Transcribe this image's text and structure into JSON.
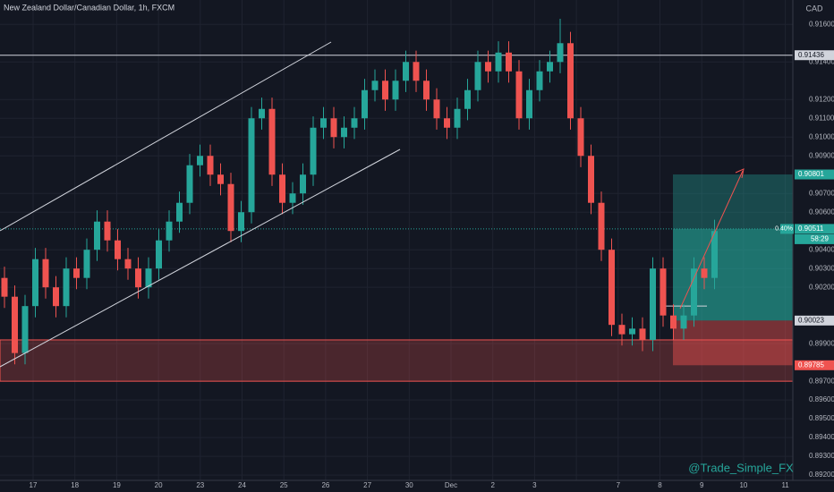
{
  "chart_data": {
    "type": "candlestick",
    "title": "New Zealand Dollar/Canadian Dollar, 1h, FXCM",
    "currency": "CAD",
    "watermark": "@Trade_Simple_FX",
    "up_color": "#26a69a",
    "down_color": "#ef5350",
    "x_labels": [
      "17",
      "18",
      "19",
      "20",
      "23",
      "24",
      "25",
      "26",
      "27",
      "30",
      "Dec",
      "2",
      "3",
      null,
      "7",
      "8",
      "9",
      "10",
      "11"
    ],
    "open": [
      0.9025,
      0.9015,
      0.8985,
      0.901,
      0.9035,
      0.902,
      0.901,
      0.903,
      0.9025,
      0.904,
      0.9055,
      0.9045,
      0.9035,
      0.903,
      0.902,
      0.903,
      0.9045,
      0.9055,
      0.9065,
      0.9085,
      0.909,
      0.908,
      0.9075,
      0.905,
      0.906,
      0.911,
      0.9115,
      0.908,
      0.9065,
      0.907,
      0.908,
      0.9105,
      0.911,
      0.91,
      0.9105,
      0.911,
      0.9125,
      0.913,
      0.912,
      0.913,
      0.914,
      0.913,
      0.912,
      0.911,
      0.9105,
      0.9115,
      0.9125,
      0.914,
      0.9135,
      0.9145,
      0.9135,
      0.911,
      0.9125,
      0.9135,
      0.914,
      0.915,
      0.911,
      0.909,
      0.9065,
      0.904,
      0.9,
      0.8995,
      0.8998,
      0.8992,
      0.903,
      0.9005,
      0.8998,
      0.9005,
      0.903,
      0.9025
    ],
    "close": [
      0.9015,
      0.8985,
      0.901,
      0.9035,
      0.902,
      0.901,
      0.903,
      0.9025,
      0.904,
      0.9055,
      0.9045,
      0.9035,
      0.903,
      0.902,
      0.903,
      0.9045,
      0.9055,
      0.9065,
      0.9085,
      0.909,
      0.908,
      0.9075,
      0.905,
      0.906,
      0.911,
      0.9115,
      0.908,
      0.9065,
      0.907,
      0.908,
      0.9105,
      0.911,
      0.91,
      0.9105,
      0.911,
      0.9125,
      0.913,
      0.912,
      0.913,
      0.914,
      0.913,
      0.912,
      0.911,
      0.9105,
      0.9115,
      0.9125,
      0.914,
      0.9135,
      0.9145,
      0.9135,
      0.911,
      0.9125,
      0.9135,
      0.914,
      0.915,
      0.911,
      0.909,
      0.9065,
      0.904,
      0.9,
      0.8995,
      0.8998,
      0.8992,
      0.903,
      0.9005,
      0.8998,
      0.9005,
      0.903,
      0.9025,
      0.905
    ],
    "high": [
      0.9031,
      0.9021,
      0.9016,
      0.9041,
      0.9041,
      0.9026,
      0.9036,
      0.9036,
      0.9046,
      0.9061,
      0.9061,
      0.9051,
      0.9041,
      0.9036,
      0.9036,
      0.9051,
      0.9061,
      0.9071,
      0.9091,
      0.9096,
      0.9096,
      0.9086,
      0.9081,
      0.9066,
      0.9116,
      0.9121,
      0.9121,
      0.9086,
      0.9076,
      0.9086,
      0.9111,
      0.9116,
      0.9116,
      0.9111,
      0.9116,
      0.9131,
      0.9136,
      0.9136,
      0.9136,
      0.9146,
      0.9146,
      0.9136,
      0.9126,
      0.9116,
      0.9121,
      0.9131,
      0.9146,
      0.9146,
      0.9151,
      0.9151,
      0.9141,
      0.9131,
      0.9141,
      0.9146,
      0.9163,
      0.9156,
      0.9116,
      0.9096,
      0.9071,
      0.9046,
      0.9006,
      0.9004,
      0.9004,
      0.9036,
      0.9036,
      0.9011,
      0.9011,
      0.9036,
      0.9036,
      0.9056
    ],
    "low": [
      0.9009,
      0.8979,
      0.8979,
      0.9004,
      0.9014,
      0.9004,
      0.9004,
      0.9019,
      0.9019,
      0.9034,
      0.9039,
      0.9029,
      0.9024,
      0.9014,
      0.9014,
      0.9024,
      0.9039,
      0.9049,
      0.9059,
      0.9079,
      0.9074,
      0.9069,
      0.9044,
      0.9044,
      0.9054,
      0.9104,
      0.9074,
      0.9059,
      0.9059,
      0.9064,
      0.9074,
      0.9099,
      0.9094,
      0.9094,
      0.9099,
      0.9104,
      0.9119,
      0.9114,
      0.9114,
      0.9124,
      0.9124,
      0.9114,
      0.9104,
      0.9099,
      0.9099,
      0.9109,
      0.9119,
      0.9129,
      0.9129,
      0.9129,
      0.9104,
      0.9104,
      0.9119,
      0.9129,
      0.9134,
      0.9104,
      0.9084,
      0.9059,
      0.9034,
      0.8994,
      0.8989,
      0.8989,
      0.8986,
      0.8986,
      0.8999,
      0.8992,
      0.8992,
      0.8999,
      0.9019,
      0.9019
    ],
    "ylim": [
      0.8911,
      0.9173
    ],
    "yticks": [
      {
        "value": 0.892,
        "label": "0.89200"
      },
      {
        "value": 0.893,
        "label": "0.89300"
      },
      {
        "value": 0.894,
        "label": "0.89400"
      },
      {
        "value": 0.895,
        "label": "0.89500"
      },
      {
        "value": 0.896,
        "label": "0.89600"
      },
      {
        "value": 0.897,
        "label": "0.89700"
      },
      {
        "value": 0.899,
        "label": "0.89900"
      },
      {
        "value": 0.902,
        "label": "0.90200"
      },
      {
        "value": 0.903,
        "label": "0.90300"
      },
      {
        "value": 0.904,
        "label": "0.90400"
      },
      {
        "value": 0.906,
        "label": "0.90600"
      },
      {
        "value": 0.907,
        "label": "0.90700"
      },
      {
        "value": 0.909,
        "label": "0.90900"
      },
      {
        "value": 0.91,
        "label": "0.91000"
      },
      {
        "value": 0.911,
        "label": "0.91100"
      },
      {
        "value": 0.912,
        "label": "0.91200"
      },
      {
        "value": 0.914,
        "label": "0.91400"
      },
      {
        "value": 0.916,
        "label": "0.91600"
      }
    ],
    "resistance": 0.91436,
    "zone": [
      0.897,
      0.8992
    ],
    "entry_level": 0.901,
    "position": {
      "target": 0.90801,
      "entry": 0.90023,
      "stop": 0.89785
    },
    "last_price": 0.90511,
    "last_change": "0.40%",
    "countdown": "58:29"
  }
}
